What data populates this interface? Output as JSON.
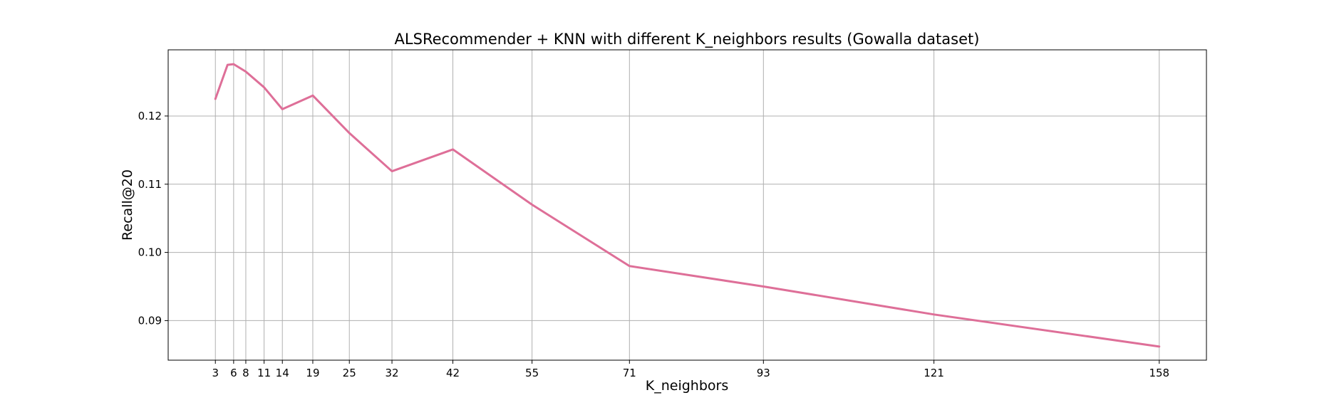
{
  "chart_data": {
    "type": "line",
    "title": "ALSRecommender + KNN with different K_neighbors results (Gowalla dataset)",
    "xlabel": "K_neighbors",
    "ylabel": "Recall@20",
    "x": [
      3,
      5,
      6,
      8,
      11,
      14,
      19,
      25,
      32,
      42,
      55,
      71,
      93,
      121,
      158
    ],
    "xticks": [
      3,
      6,
      8,
      11,
      14,
      19,
      25,
      32,
      42,
      55,
      71,
      93,
      121,
      158
    ],
    "series": [
      {
        "name": "",
        "color": "#de6f98",
        "values": [
          0.1225,
          0.1275,
          0.1276,
          0.1265,
          0.1242,
          0.121,
          0.123,
          0.1175,
          0.1119,
          0.1151,
          0.107,
          0.098,
          0.095,
          0.0909,
          0.0862
        ]
      }
    ],
    "xlim": [
      -4.75,
      165.75
    ],
    "ylim": [
      0.0842,
      0.1297
    ],
    "yticks": [
      "0.09",
      "0.10",
      "0.11",
      "0.12"
    ],
    "ytick_values": [
      0.09,
      0.1,
      0.11,
      0.12
    ],
    "grid": true,
    "legend": "none"
  }
}
